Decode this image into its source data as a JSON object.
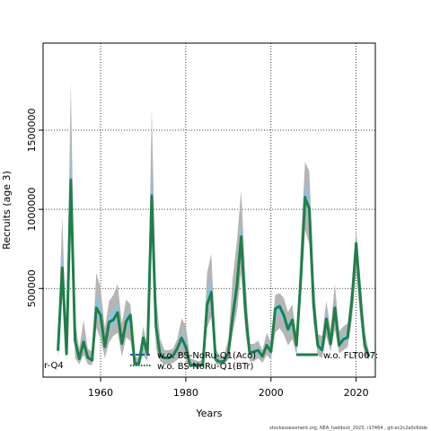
{
  "chart_data": {
    "type": "line",
    "title": "",
    "xlabel": "Years",
    "ylabel": "Recruits (age 3)",
    "xlim": [
      1946.5,
      2024.5
    ],
    "ylim": [
      -60000,
      2050000
    ],
    "x_ticks": [
      "1960",
      "1980",
      "2000",
      "2020"
    ],
    "y_ticks": [
      "500000",
      "1000000",
      "1500000"
    ],
    "grid": true,
    "x": [
      1950,
      1951,
      1952,
      1953,
      1954,
      1955,
      1956,
      1957,
      1958,
      1959,
      1960,
      1961,
      1962,
      1963,
      1964,
      1965,
      1966,
      1967,
      1968,
      1969,
      1970,
      1971,
      1972,
      1973,
      1974,
      1975,
      1976,
      1977,
      1978,
      1979,
      1980,
      1981,
      1982,
      1983,
      1984,
      1985,
      1986,
      1987,
      1988,
      1989,
      1990,
      1991,
      1992,
      1993,
      1994,
      1995,
      1996,
      1997,
      1998,
      1999,
      2000,
      2001,
      2002,
      2003,
      2004,
      2005,
      2006,
      2007,
      2008,
      2009,
      2010,
      2011,
      2012,
      2013,
      2014,
      2015,
      2016,
      2017,
      2018,
      2019,
      2020,
      2021,
      2022,
      2023
    ],
    "band_upper": [
      200000,
      950000,
      150000,
      1800000,
      300000,
      120000,
      300000,
      120000,
      100000,
      600000,
      500000,
      250000,
      420000,
      460000,
      530000,
      280000,
      430000,
      400000,
      70000,
      60000,
      260000,
      140000,
      1640000,
      460000,
      180000,
      110000,
      110000,
      120000,
      180000,
      310000,
      270000,
      60000,
      50000,
      40000,
      50000,
      600000,
      720000,
      120000,
      70000,
      80000,
      180000,
      560000,
      800000,
      1120000,
      560000,
      150000,
      150000,
      170000,
      110000,
      220000,
      160000,
      460000,
      470000,
      440000,
      350000,
      400000,
      200000,
      780000,
      1300000,
      1240000,
      580000,
      210000,
      200000,
      420000,
      240000,
      530000,
      230000,
      260000,
      280000,
      540000,
      870000,
      560000,
      230000,
      100000
    ],
    "band_lower": [
      50000,
      450000,
      40000,
      950000,
      60000,
      20000,
      80000,
      20000,
      15000,
      250000,
      180000,
      60000,
      160000,
      200000,
      220000,
      70000,
      190000,
      170000,
      10000,
      10000,
      80000,
      40000,
      900000,
      120000,
      40000,
      20000,
      20000,
      30000,
      50000,
      80000,
      50000,
      5000,
      5000,
      5000,
      5000,
      250000,
      320000,
      20000,
      15000,
      20000,
      50000,
      220000,
      350000,
      600000,
      220000,
      40000,
      40000,
      60000,
      30000,
      80000,
      50000,
      220000,
      250000,
      210000,
      140000,
      180000,
      80000,
      430000,
      870000,
      780000,
      280000,
      80000,
      60000,
      200000,
      100000,
      240000,
      90000,
      110000,
      130000,
      300000,
      610000,
      300000,
      80000,
      50000
    ],
    "series": [
      {
        "name": "w.o. BS-NoRu-Q1(Aco)",
        "color": "#1f5fa8",
        "style": "dashed",
        "values": [
          105000,
          640000,
          85000,
          1190000,
          170000,
          55000,
          160000,
          65000,
          45000,
          380000,
          330000,
          130000,
          290000,
          300000,
          350000,
          150000,
          290000,
          330000,
          25000,
          25000,
          190000,
          90000,
          1090000,
          260000,
          75000,
          60000,
          60000,
          75000,
          120000,
          190000,
          130000,
          15000,
          15000,
          15000,
          15000,
          400000,
          480000,
          50000,
          35000,
          40000,
          90000,
          320000,
          520000,
          820000,
          360000,
          90000,
          100000,
          110000,
          70000,
          140000,
          100000,
          370000,
          390000,
          330000,
          240000,
          300000,
          140000,
          560000,
          1080000,
          1010000,
          400000,
          140000,
          110000,
          310000,
          150000,
          380000,
          140000,
          180000,
          190000,
          420000,
          790000,
          430000,
          140000,
          70000
        ]
      },
      {
        "name": "w.o. BS-NoRu-Q1(BTr)",
        "color": "#0a6a58",
        "style": "dotted",
        "values": [
          110000,
          625000,
          85000,
          1170000,
          165000,
          55000,
          160000,
          63000,
          45000,
          375000,
          330000,
          130000,
          285000,
          300000,
          345000,
          150000,
          290000,
          330000,
          25000,
          25000,
          185000,
          88000,
          1070000,
          255000,
          75000,
          60000,
          60000,
          75000,
          120000,
          185000,
          130000,
          15000,
          15000,
          15000,
          15000,
          395000,
          470000,
          50000,
          35000,
          40000,
          90000,
          320000,
          510000,
          830000,
          355000,
          90000,
          100000,
          108000,
          70000,
          140000,
          100000,
          370000,
          385000,
          330000,
          240000,
          300000,
          140000,
          555000,
          1060000,
          1000000,
          395000,
          138000,
          110000,
          305000,
          150000,
          375000,
          140000,
          178000,
          190000,
          415000,
          780000,
          425000,
          140000,
          70000
        ]
      },
      {
        "name": "w.o. FLT007:",
        "color": "#1f7f4a",
        "style": "solid",
        "values": [
          110000,
          630000,
          88000,
          1180000,
          170000,
          56000,
          162000,
          64000,
          46000,
          378000,
          332000,
          132000,
          288000,
          302000,
          348000,
          152000,
          292000,
          332000,
          26000,
          26000,
          188000,
          90000,
          1075000,
          258000,
          76000,
          61000,
          61000,
          76000,
          121000,
          188000,
          131000,
          16000,
          16000,
          16000,
          16000,
          398000,
          475000,
          51000,
          36000,
          41000,
          91000,
          322000,
          515000,
          825000,
          358000,
          91000,
          101000,
          109000,
          71000,
          141000,
          101000,
          372000,
          388000,
          332000,
          242000,
          302000,
          141000,
          558000,
          1070000,
          1005000,
          398000,
          139000,
          111000,
          308000,
          151000,
          378000,
          141000,
          179000,
          191000,
          418000,
          785000,
          428000,
          141000,
          71000
        ]
      }
    ],
    "legend_labels": [
      "r-Q4",
      "w.o. BS-NoRu-Q1(Aco)",
      "w.o. FLT007:",
      "w.o. BS-NoRu-Q1(BTr)"
    ],
    "legend_position": "bottom-left"
  },
  "credit": "stockassessment.org, NEA_haddock_2023, r17464 , git:ec2c2a0c6dde"
}
